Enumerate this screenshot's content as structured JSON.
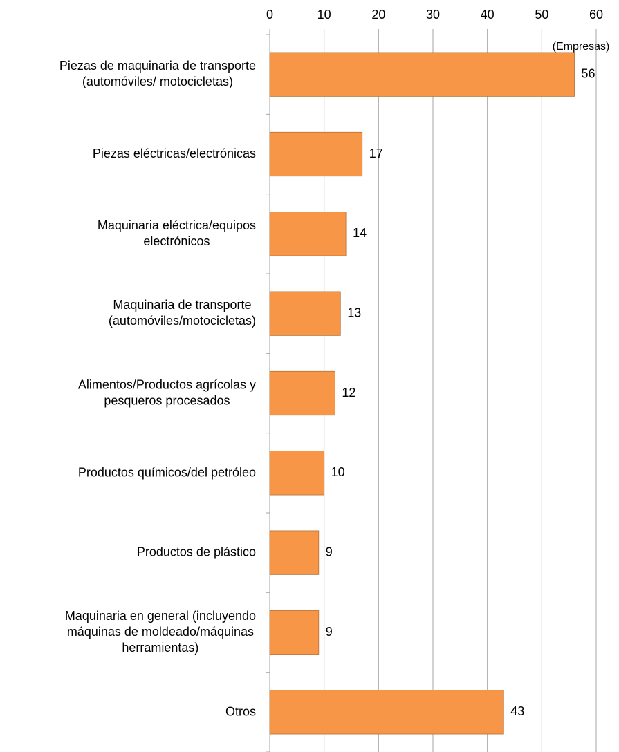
{
  "chart_data": {
    "type": "bar",
    "orientation": "horizontal",
    "x_axis_label": "(Empresas)",
    "categories": [
      "Piezas de maquinaria de transporte\n(automóviles/ motocicletas)",
      "Piezas eléctricas/electrónicas",
      "Maquinaria eléctrica/equipos\nelectrónicos",
      "Maquinaria de transporte\n(automóviles/motocicletas)",
      "Alimentos/Productos agrícolas y\npesqueros procesados",
      "Productos químicos/del petróleo",
      "Productos de plástico",
      "Maquinaria en general (incluyendo\nmáquinas de moldeado/máquinas\nherramientas)",
      "Otros"
    ],
    "values": [
      56,
      17,
      14,
      13,
      12,
      10,
      9,
      9,
      43
    ],
    "color": "#f79646",
    "xlim": [
      0,
      60
    ],
    "xticks": [
      0,
      10,
      20,
      30,
      40,
      50,
      60
    ],
    "grid": true
  }
}
